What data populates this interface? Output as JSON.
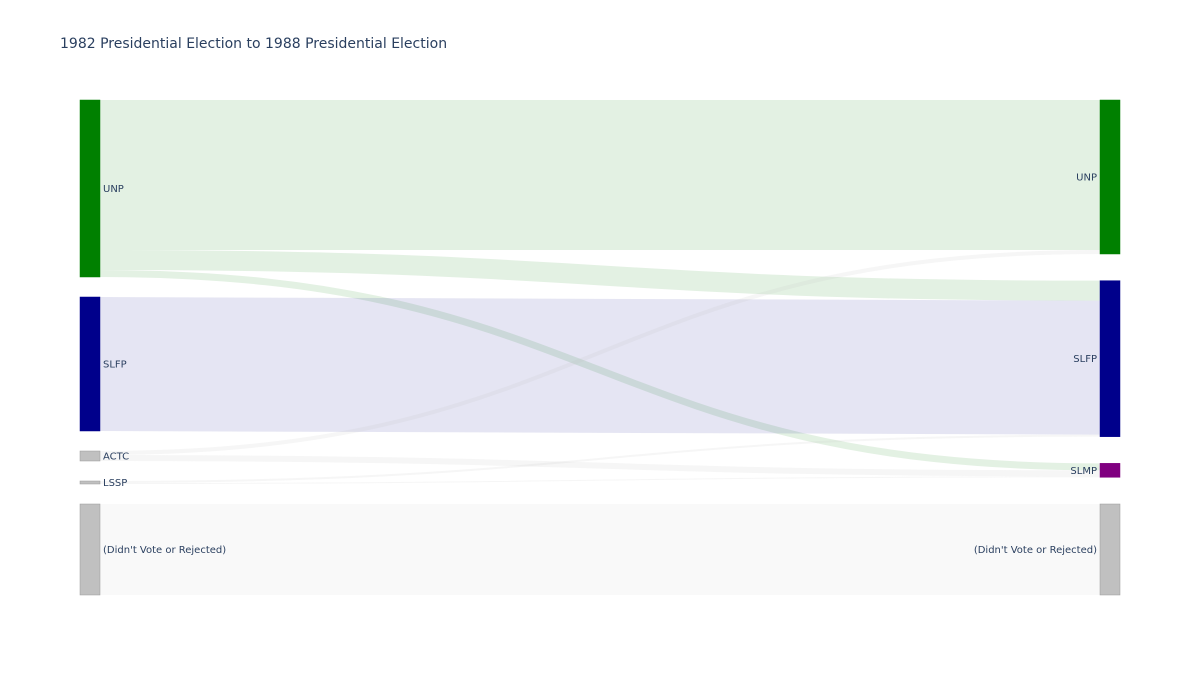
{
  "chart_data": {
    "type": "sankey",
    "title": "1982 Presidential Election to 1988 Presidential Election",
    "nodes": [
      {
        "id": "UNP82",
        "label": "UNP",
        "column": 0,
        "color": "#008000"
      },
      {
        "id": "SLFP82",
        "label": "SLFP",
        "column": 0,
        "color": "#00008B"
      },
      {
        "id": "ACTC82",
        "label": "ACTC",
        "column": 0,
        "color": "#C0C0C0"
      },
      {
        "id": "LSSP82",
        "label": "LSSP",
        "column": 0,
        "color": "#C0C0C0"
      },
      {
        "id": "DNV82",
        "label": "(Didn't Vote or Rejected)",
        "column": 0,
        "color": "#C0C0C0"
      },
      {
        "id": "UNP88",
        "label": "UNP",
        "column": 1,
        "color": "#008000"
      },
      {
        "id": "SLFP88",
        "label": "SLFP",
        "column": 1,
        "color": "#00008B"
      },
      {
        "id": "SLMP88",
        "label": "SLMP",
        "column": 1,
        "color": "#800080"
      },
      {
        "id": "DNV88",
        "label": "(Didn't Vote or Rejected)",
        "column": 1,
        "color": "#C0C0C0"
      }
    ],
    "links": [
      {
        "source": "UNP82",
        "target": "UNP88",
        "value": 150,
        "color": "rgba(0,128,0,0.11)"
      },
      {
        "source": "UNP82",
        "target": "SLFP88",
        "value": 20,
        "color": "rgba(0,128,0,0.11)"
      },
      {
        "source": "UNP82",
        "target": "SLMP88",
        "value": 7,
        "color": "rgba(0,128,0,0.11)"
      },
      {
        "source": "SLFP82",
        "target": "SLFP88",
        "value": 134,
        "color": "rgba(0,0,139,0.10)"
      },
      {
        "source": "ACTC82",
        "target": "UNP88",
        "value": 4,
        "color": "rgba(192,192,192,0.14)"
      },
      {
        "source": "ACTC82",
        "target": "SLMP88",
        "value": 6,
        "color": "rgba(192,192,192,0.14)"
      },
      {
        "source": "LSSP82",
        "target": "SLFP88",
        "value": 2,
        "color": "rgba(192,192,192,0.14)"
      },
      {
        "source": "LSSP82",
        "target": "SLMP88",
        "value": 1,
        "color": "rgba(192,192,192,0.14)"
      },
      {
        "source": "DNV82",
        "target": "DNV88",
        "value": 91,
        "color": "rgba(192,192,192,0.10)"
      }
    ]
  }
}
